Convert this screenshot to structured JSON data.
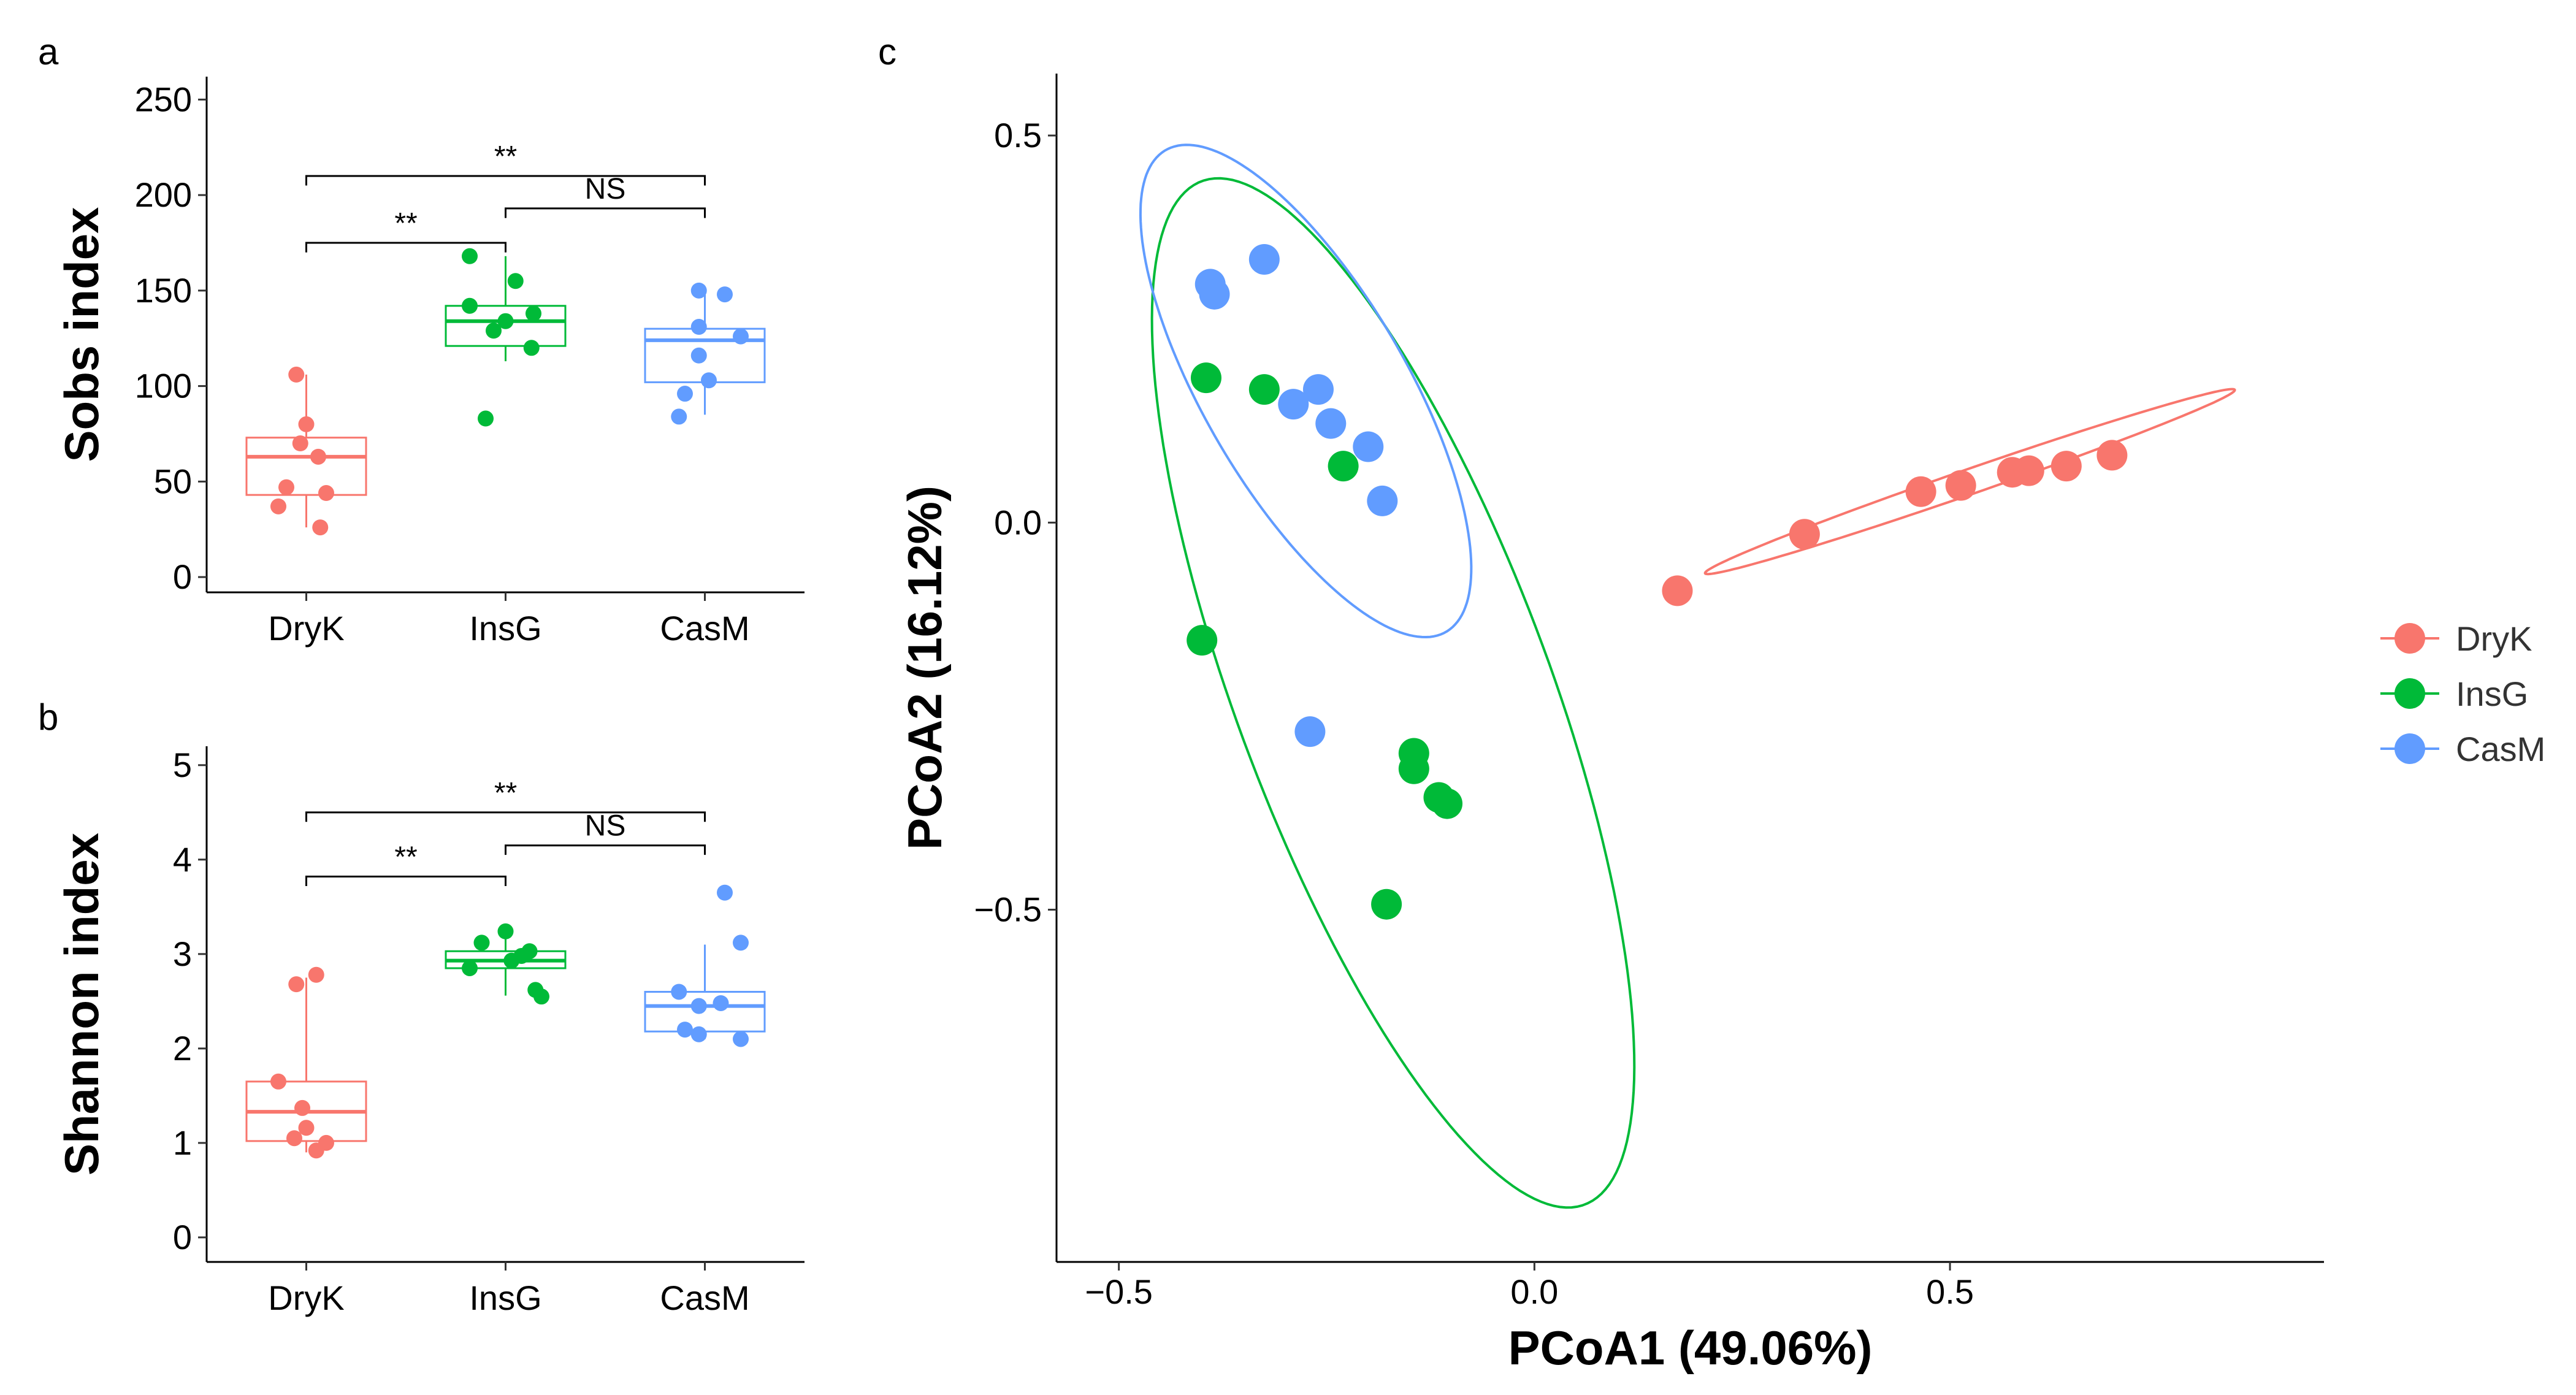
{
  "colors": {
    "DryK": "#F8766D",
    "InsG": "#00BA38",
    "CasM": "#619CFF"
  },
  "chart_data": [
    {
      "panel": "a",
      "type": "boxplot",
      "ylabel": "Sobs index",
      "xlabel": "",
      "categories": [
        "DryK",
        "InsG",
        "CasM"
      ],
      "ylim": [
        -8,
        262
      ],
      "yticks": [
        0,
        50,
        100,
        150,
        200,
        250
      ],
      "ytick_labels": [
        "0",
        "50",
        "100",
        "150",
        "200",
        "250"
      ],
      "boxes": [
        {
          "group": "DryK",
          "q1": 43,
          "median": 63,
          "q3": 73,
          "whisker_low": 26,
          "whisker_high": 106
        },
        {
          "group": "InsG",
          "q1": 121,
          "median": 134,
          "q3": 142,
          "whisker_low": 113,
          "whisker_high": 168
        },
        {
          "group": "CasM",
          "q1": 102,
          "median": 124,
          "q3": 130,
          "whisker_low": 85,
          "whisker_high": 150
        }
      ],
      "points": [
        {
          "group": "DryK",
          "dx": -0.05,
          "y": 106
        },
        {
          "group": "DryK",
          "dx": 0.0,
          "y": 80
        },
        {
          "group": "DryK",
          "dx": -0.03,
          "y": 70
        },
        {
          "group": "DryK",
          "dx": 0.06,
          "y": 63
        },
        {
          "group": "DryK",
          "dx": -0.1,
          "y": 47
        },
        {
          "group": "DryK",
          "dx": 0.1,
          "y": 44
        },
        {
          "group": "DryK",
          "dx": -0.14,
          "y": 37
        },
        {
          "group": "DryK",
          "dx": 0.07,
          "y": 26
        },
        {
          "group": "InsG",
          "dx": -0.18,
          "y": 168
        },
        {
          "group": "InsG",
          "dx": 0.05,
          "y": 155
        },
        {
          "group": "InsG",
          "dx": -0.18,
          "y": 142
        },
        {
          "group": "InsG",
          "dx": 0.14,
          "y": 138
        },
        {
          "group": "InsG",
          "dx": 0.0,
          "y": 134
        },
        {
          "group": "InsG",
          "dx": -0.06,
          "y": 129
        },
        {
          "group": "InsG",
          "dx": 0.13,
          "y": 120
        },
        {
          "group": "InsG",
          "dx": -0.1,
          "y": 83
        },
        {
          "group": "CasM",
          "dx": -0.03,
          "y": 150
        },
        {
          "group": "CasM",
          "dx": 0.1,
          "y": 148
        },
        {
          "group": "CasM",
          "dx": -0.03,
          "y": 131
        },
        {
          "group": "CasM",
          "dx": 0.18,
          "y": 126
        },
        {
          "group": "CasM",
          "dx": -0.03,
          "y": 116
        },
        {
          "group": "CasM",
          "dx": 0.02,
          "y": 103
        },
        {
          "group": "CasM",
          "dx": -0.1,
          "y": 96
        },
        {
          "group": "CasM",
          "dx": -0.13,
          "y": 84
        }
      ],
      "significance": [
        {
          "from": "DryK",
          "to": "InsG",
          "y": 175,
          "drop": 5,
          "label": "**"
        },
        {
          "from": "InsG",
          "to": "CasM",
          "y": 193,
          "drop": 5,
          "label": "NS"
        },
        {
          "from": "DryK",
          "to": "CasM",
          "y": 210,
          "drop": 5,
          "label": "**"
        }
      ]
    },
    {
      "panel": "b",
      "type": "boxplot",
      "ylabel": "Shannon index",
      "xlabel": "",
      "categories": [
        "DryK",
        "InsG",
        "CasM"
      ],
      "ylim": [
        -0.26,
        5.2
      ],
      "yticks": [
        0,
        1,
        2,
        3,
        4,
        5
      ],
      "ytick_labels": [
        "0",
        "1",
        "2",
        "3",
        "4",
        "5"
      ],
      "boxes": [
        {
          "group": "DryK",
          "q1": 1.02,
          "median": 1.33,
          "q3": 1.65,
          "whisker_low": 0.9,
          "whisker_high": 2.75
        },
        {
          "group": "InsG",
          "q1": 2.85,
          "median": 2.93,
          "q3": 3.03,
          "whisker_low": 2.56,
          "whisker_high": 3.22
        },
        {
          "group": "CasM",
          "q1": 2.18,
          "median": 2.45,
          "q3": 2.6,
          "whisker_low": 2.1,
          "whisker_high": 3.1
        }
      ],
      "points": [
        {
          "group": "DryK",
          "dx": 0.05,
          "y": 2.78
        },
        {
          "group": "DryK",
          "dx": -0.05,
          "y": 2.68
        },
        {
          "group": "DryK",
          "dx": -0.14,
          "y": 1.65
        },
        {
          "group": "DryK",
          "dx": -0.02,
          "y": 1.37
        },
        {
          "group": "DryK",
          "dx": 0.0,
          "y": 1.16
        },
        {
          "group": "DryK",
          "dx": -0.06,
          "y": 1.05
        },
        {
          "group": "DryK",
          "dx": 0.1,
          "y": 1.0
        },
        {
          "group": "DryK",
          "dx": 0.05,
          "y": 0.92
        },
        {
          "group": "InsG",
          "dx": 0.0,
          "y": 3.24
        },
        {
          "group": "InsG",
          "dx": -0.12,
          "y": 3.12
        },
        {
          "group": "InsG",
          "dx": 0.12,
          "y": 3.03
        },
        {
          "group": "InsG",
          "dx": 0.08,
          "y": 2.98
        },
        {
          "group": "InsG",
          "dx": -0.18,
          "y": 2.85
        },
        {
          "group": "InsG",
          "dx": 0.03,
          "y": 2.93
        },
        {
          "group": "InsG",
          "dx": 0.15,
          "y": 2.62
        },
        {
          "group": "InsG",
          "dx": 0.18,
          "y": 2.55
        },
        {
          "group": "CasM",
          "dx": 0.1,
          "y": 3.65
        },
        {
          "group": "CasM",
          "dx": 0.18,
          "y": 3.12
        },
        {
          "group": "CasM",
          "dx": -0.13,
          "y": 2.6
        },
        {
          "group": "CasM",
          "dx": -0.03,
          "y": 2.45
        },
        {
          "group": "CasM",
          "dx": 0.08,
          "y": 2.48
        },
        {
          "group": "CasM",
          "dx": -0.1,
          "y": 2.2
        },
        {
          "group": "CasM",
          "dx": -0.03,
          "y": 2.15
        },
        {
          "group": "CasM",
          "dx": 0.18,
          "y": 2.1
        }
      ],
      "significance": [
        {
          "from": "DryK",
          "to": "InsG",
          "y": 3.82,
          "drop": 0.1,
          "label": "**"
        },
        {
          "from": "InsG",
          "to": "CasM",
          "y": 4.15,
          "drop": 0.1,
          "label": "NS"
        },
        {
          "from": "DryK",
          "to": "CasM",
          "y": 4.5,
          "drop": 0.1,
          "label": "**"
        }
      ]
    },
    {
      "panel": "c",
      "type": "scatter",
      "xlabel": "PCoA1 (49.06%)",
      "ylabel": "PCoA2 (16.12%)",
      "xlim": [
        -0.575,
        0.95
      ],
      "ylim": [
        -0.955,
        0.58
      ],
      "xticks": [
        -0.5,
        0.0,
        0.5
      ],
      "xtick_labels": [
        "−0.5",
        "0.0",
        "0.5"
      ],
      "yticks": [
        0.5,
        0.0,
        -0.5
      ],
      "ytick_labels": [
        "0.5",
        "0.0",
        "−0.5"
      ],
      "legend_position": "right",
      "series": [
        {
          "name": "DryK",
          "points": [
            [
              0.172,
              -0.088
            ],
            [
              0.325,
              -0.015
            ],
            [
              0.465,
              0.04
            ],
            [
              0.513,
              0.048
            ],
            [
              0.575,
              0.065
            ],
            [
              0.595,
              0.067
            ],
            [
              0.64,
              0.073
            ],
            [
              0.695,
              0.087
            ]
          ]
        },
        {
          "name": "InsG",
          "points": [
            [
              -0.395,
              0.187
            ],
            [
              -0.325,
              0.172
            ],
            [
              -0.23,
              0.073
            ],
            [
              -0.4,
              -0.152
            ],
            [
              -0.145,
              -0.298
            ],
            [
              -0.145,
              -0.318
            ],
            [
              -0.115,
              -0.355
            ],
            [
              -0.105,
              -0.363
            ],
            [
              -0.178,
              -0.493
            ]
          ]
        },
        {
          "name": "CasM",
          "points": [
            [
              -0.325,
              0.34
            ],
            [
              -0.39,
              0.308
            ],
            [
              -0.385,
              0.295
            ],
            [
              -0.26,
              0.172
            ],
            [
              -0.29,
              0.153
            ],
            [
              -0.245,
              0.128
            ],
            [
              -0.2,
              0.098
            ],
            [
              -0.183,
              0.028
            ],
            [
              -0.27,
              -0.27
            ]
          ]
        }
      ],
      "ellipses": [
        {
          "group": "DryK",
          "cx": 0.524,
          "cy": 0.053,
          "rx": 0.34,
          "ry": 0.016,
          "angle_deg": 20.4
        },
        {
          "group": "InsG",
          "cx": -0.17,
          "cy": -0.22,
          "rx": 0.7,
          "ry": 0.19,
          "angle_deg": -71
        },
        {
          "group": "CasM",
          "cx": -0.275,
          "cy": 0.17,
          "rx": 0.354,
          "ry": 0.124,
          "angle_deg": -62
        }
      ]
    }
  ]
}
